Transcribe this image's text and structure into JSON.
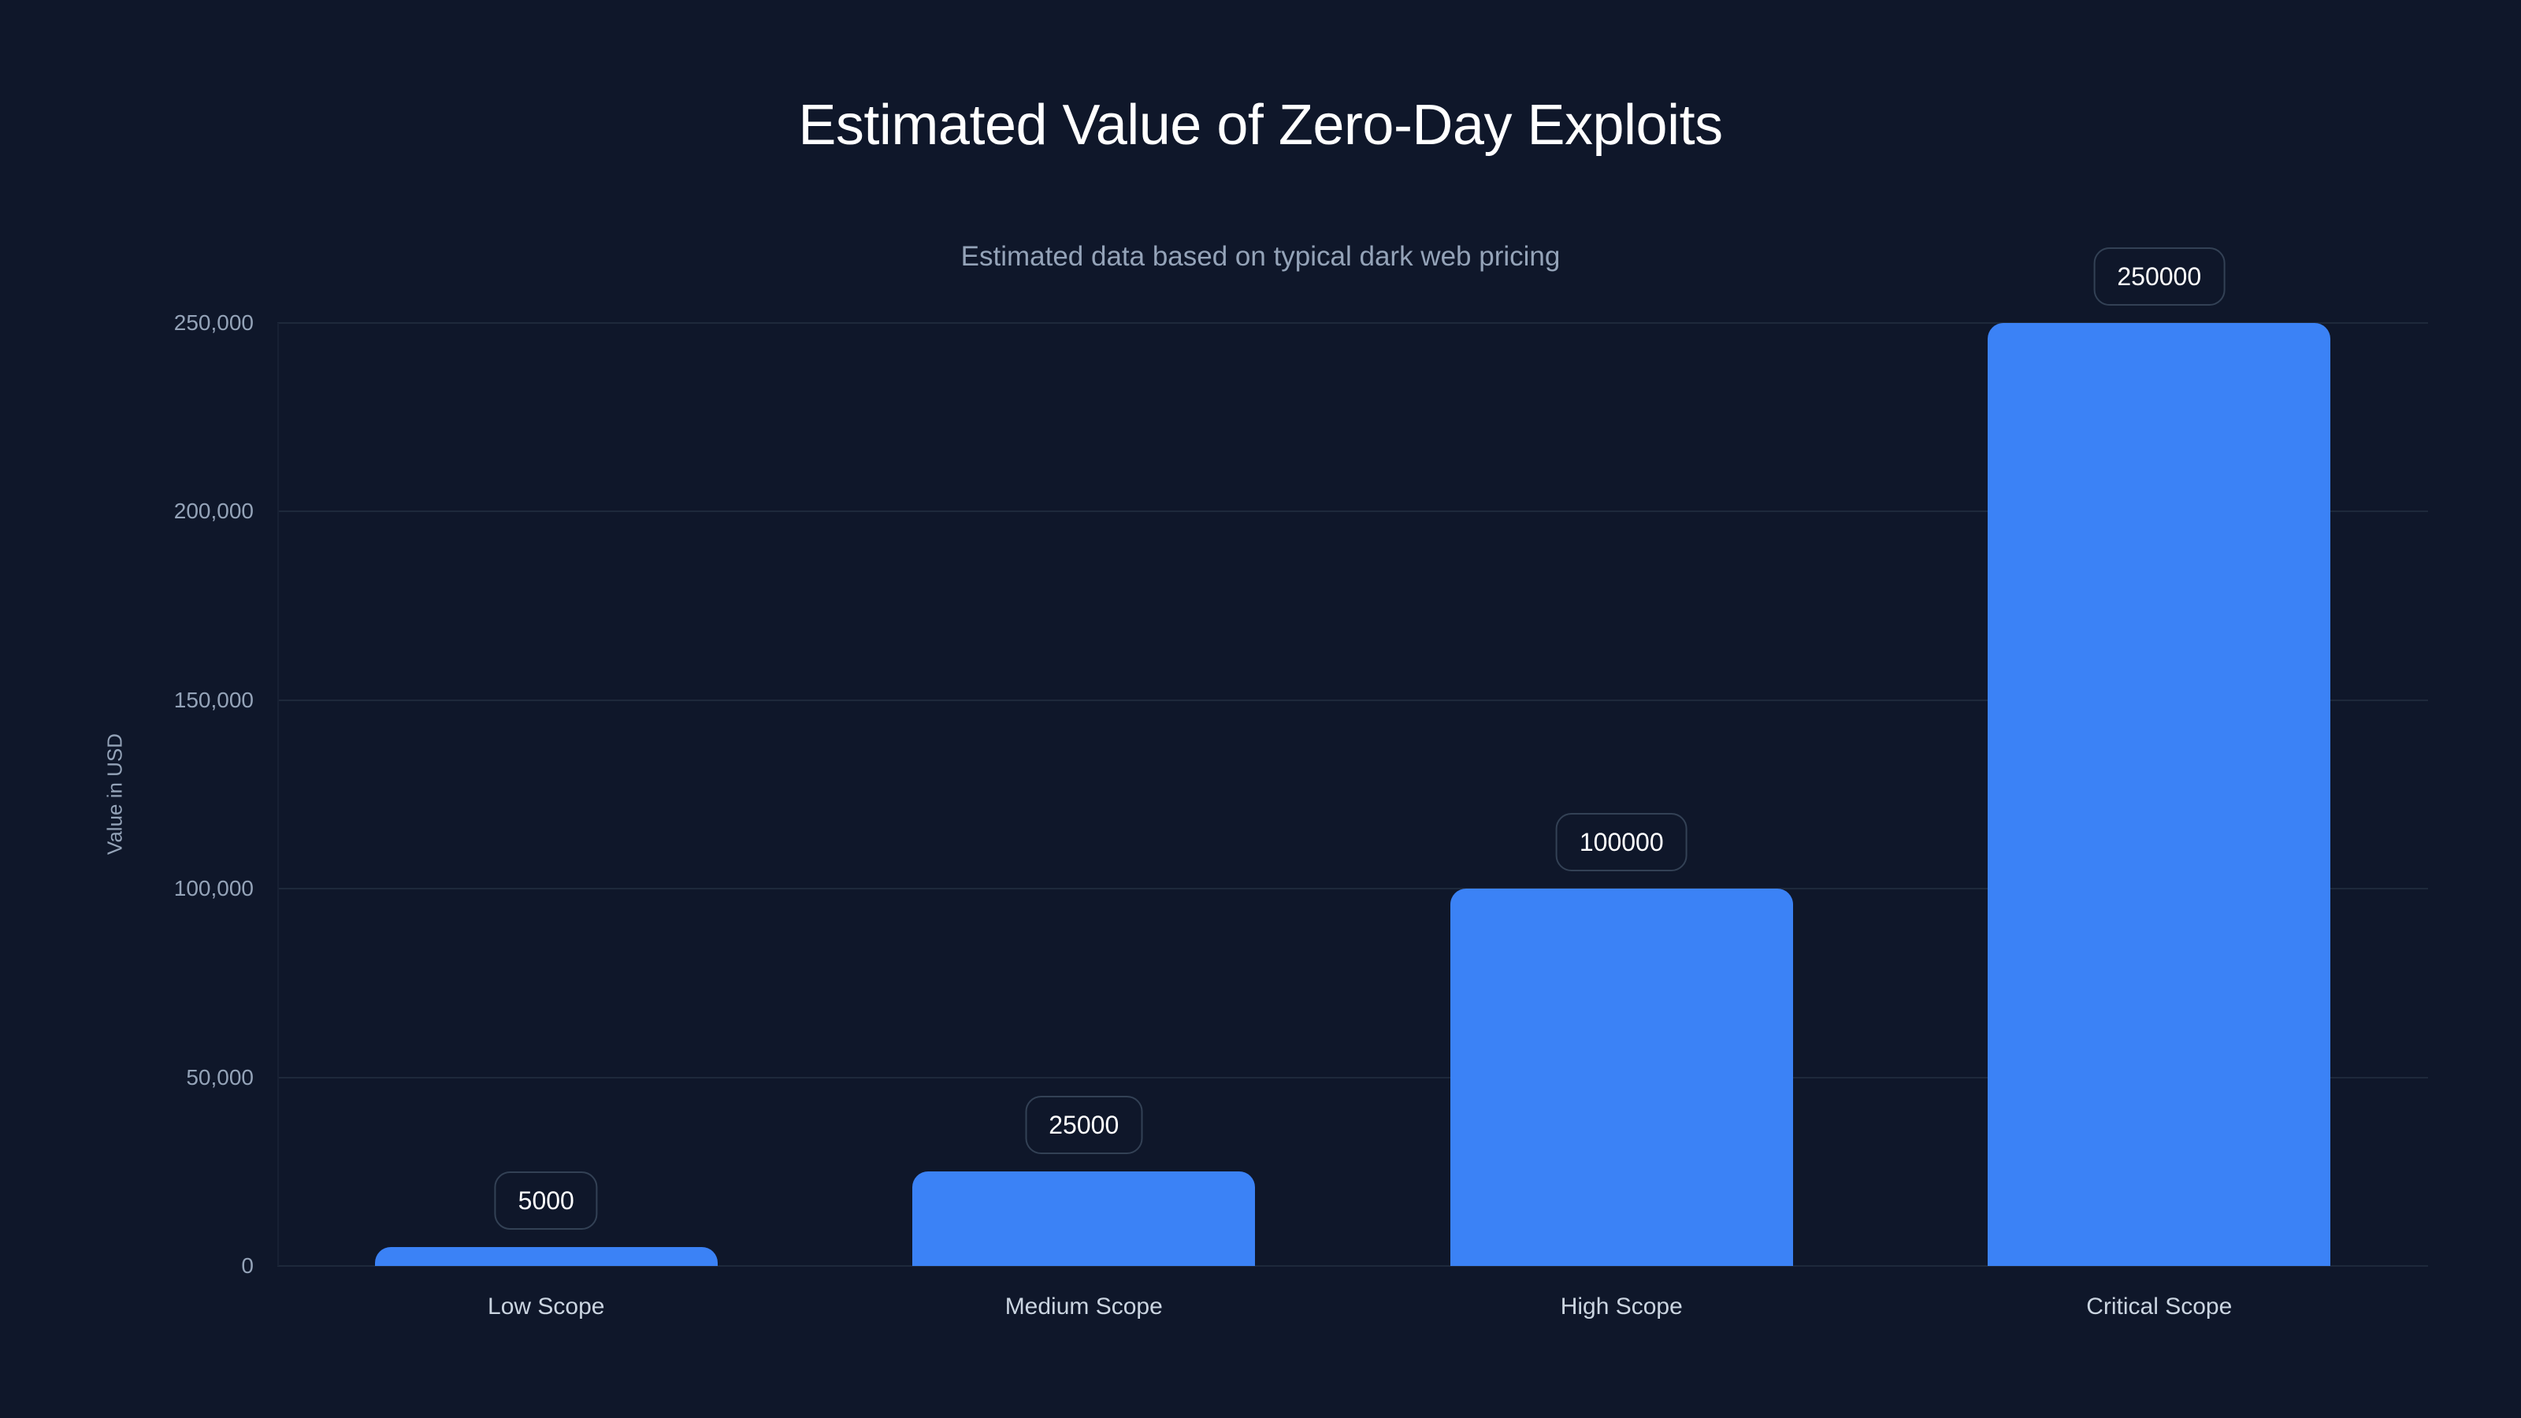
{
  "title": "Estimated Value of Zero-Day Exploits",
  "subtitle": "Estimated data based on typical dark web pricing",
  "colors": {
    "background": "#0f172a",
    "bar": "#3b82f6",
    "grid": "#1e293b",
    "label_border": "#334155",
    "axis_text": "#94a3b8"
  },
  "chart_data": {
    "type": "bar",
    "title": "Estimated Value of Zero-Day Exploits",
    "subtitle": "Estimated data based on typical dark web pricing",
    "xlabel": "",
    "ylabel": "Value in USD",
    "categories": [
      "Low Scope",
      "Medium Scope",
      "High Scope",
      "Critical Scope"
    ],
    "values": [
      5000,
      25000,
      100000,
      250000
    ],
    "value_labels": [
      "5000",
      "25000",
      "100000",
      "250000"
    ],
    "ylim": [
      0,
      250000
    ],
    "yticks": [
      0,
      50000,
      100000,
      150000,
      200000,
      250000
    ],
    "ytick_labels": [
      "0",
      "50,000",
      "100,000",
      "150,000",
      "200,000",
      "250,000"
    ],
    "grid": true,
    "legend": null
  }
}
